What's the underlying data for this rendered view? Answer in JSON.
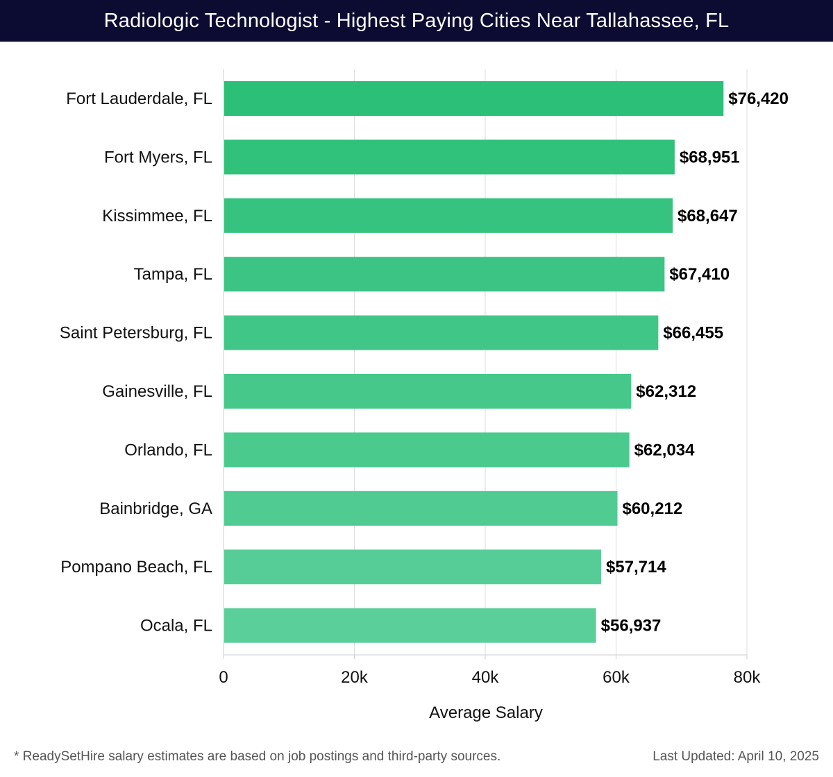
{
  "header": {
    "title": "Radiologic Technologist - Highest Paying Cities Near Tallahassee, FL"
  },
  "chart_data": {
    "type": "bar",
    "orientation": "horizontal",
    "title": "Radiologic Technologist - Highest Paying Cities Near Tallahassee, FL",
    "categories": [
      "Fort Lauderdale, FL",
      "Fort Myers, FL",
      "Kissimmee, FL",
      "Tampa, FL",
      "Saint Petersburg, FL",
      "Gainesville, FL",
      "Orlando, FL",
      "Bainbridge, GA",
      "Pompano Beach, FL",
      "Ocala, FL"
    ],
    "values": [
      76420,
      68951,
      68647,
      67410,
      66455,
      62312,
      62034,
      60212,
      57714,
      56937
    ],
    "value_labels": [
      "$76,420",
      "$68,951",
      "$68,647",
      "$67,410",
      "$66,455",
      "$62,312",
      "$62,034",
      "$60,212",
      "$57,714",
      "$56,937"
    ],
    "xlabel": "Average Salary",
    "ylabel": "",
    "xlim": [
      0,
      80000
    ],
    "x_ticks": [
      0,
      20000,
      40000,
      60000,
      80000
    ],
    "x_tick_labels": [
      "0",
      "20k",
      "40k",
      "60k",
      "80k"
    ],
    "grid": true,
    "colors": {
      "bar_top": "#2bbf77",
      "bar_bottom": "#5bcf9a",
      "grid": "#dddddd",
      "axis": "#cccccc"
    }
  },
  "footer": {
    "note": "* ReadySetHire salary estimates are based on job postings and third-party sources.",
    "updated": "Last Updated: April 10, 2025"
  }
}
